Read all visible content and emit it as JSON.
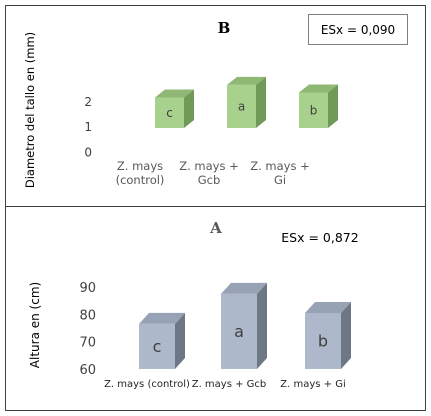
{
  "chart_data": [
    {
      "type": "bar",
      "panel": "B",
      "title": "B",
      "ylabel": "Diametro del tallo en (mm)",
      "annotation": "ESx = 0,090",
      "categories": [
        "Z. mays (control)",
        "Z. mays + Gcb",
        "Z. mays + Gi"
      ],
      "category_lines": [
        [
          "Z. mays",
          "(control)"
        ],
        [
          "Z. mays +",
          "Gcb"
        ],
        [
          "Z. mays +",
          "Gi"
        ]
      ],
      "values": [
        2.15,
        2.65,
        2.35
      ],
      "bar_labels": [
        "c",
        "a",
        "b"
      ],
      "yticks": [
        "0",
        "1",
        "2"
      ],
      "ylim": [
        0,
        3
      ],
      "grid": false,
      "colors": {
        "front": "#a9d18e",
        "top": "#8fb874",
        "side": "#6f9a58"
      }
    },
    {
      "type": "bar",
      "panel": "A",
      "title": "A",
      "ylabel": "Altura en (cm)",
      "annotation": "ESx = 0,872",
      "categories": [
        "Z. mays (control)",
        "Z. mays + Gcb",
        "Z. mays + Gi"
      ],
      "values": [
        76.5,
        87.5,
        80.5
      ],
      "bar_labels": [
        "c",
        "a",
        "b"
      ],
      "yticks": [
        "60",
        "70",
        "80",
        "90"
      ],
      "ylim": [
        60,
        90
      ],
      "grid": false,
      "colors": {
        "front": "#adb9ca",
        "top": "#97a3b4",
        "side": "#6e7786"
      }
    }
  ]
}
